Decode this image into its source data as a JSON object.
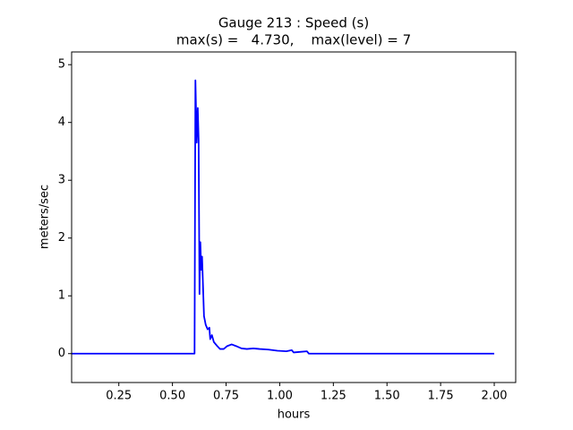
{
  "chart_data": {
    "type": "line",
    "title": "Gauge 213 : Speed (s)",
    "subtitle": "max(s) =   4.730,    max(level) = 7",
    "x_label": "hours",
    "y_label": "meters/sec",
    "xlim": [
      0.03,
      2.1
    ],
    "ylim": [
      -0.5,
      5.22
    ],
    "xticks": [
      0.25,
      {
        "value": 0.5,
        "label": "0.50"
      },
      0.75,
      {
        "value": 1.0,
        "label": "1.00"
      },
      1.25,
      {
        "value": 1.5,
        "label": "1.50"
      },
      1.75,
      {
        "value": 2.0,
        "label": "2.00"
      }
    ],
    "yticks": [
      0,
      1,
      2,
      3,
      4,
      5
    ],
    "grid": false,
    "series": [
      {
        "color": "#0000ff",
        "x": [
          0.03,
          0.603,
          0.607,
          0.613,
          0.618,
          0.622,
          0.626,
          0.63,
          0.634,
          0.638,
          0.647,
          0.655,
          0.664,
          0.672,
          0.676,
          0.684,
          0.693,
          0.709,
          0.722,
          0.739,
          0.755,
          0.776,
          0.797,
          0.822,
          0.847,
          0.877,
          0.906,
          0.948,
          0.989,
          1.031,
          1.056,
          1.065,
          1.094,
          1.127,
          1.136,
          2.0
        ],
        "values": [
          0,
          0,
          4.73,
          3.65,
          4.25,
          3.7,
          1.03,
          1.93,
          1.45,
          1.68,
          0.65,
          0.5,
          0.42,
          0.45,
          0.25,
          0.32,
          0.2,
          0.13,
          0.08,
          0.08,
          0.13,
          0.16,
          0.13,
          0.09,
          0.08,
          0.09,
          0.08,
          0.07,
          0.05,
          0.04,
          0.06,
          0.02,
          0.03,
          0.04,
          0,
          0
        ]
      }
    ]
  }
}
